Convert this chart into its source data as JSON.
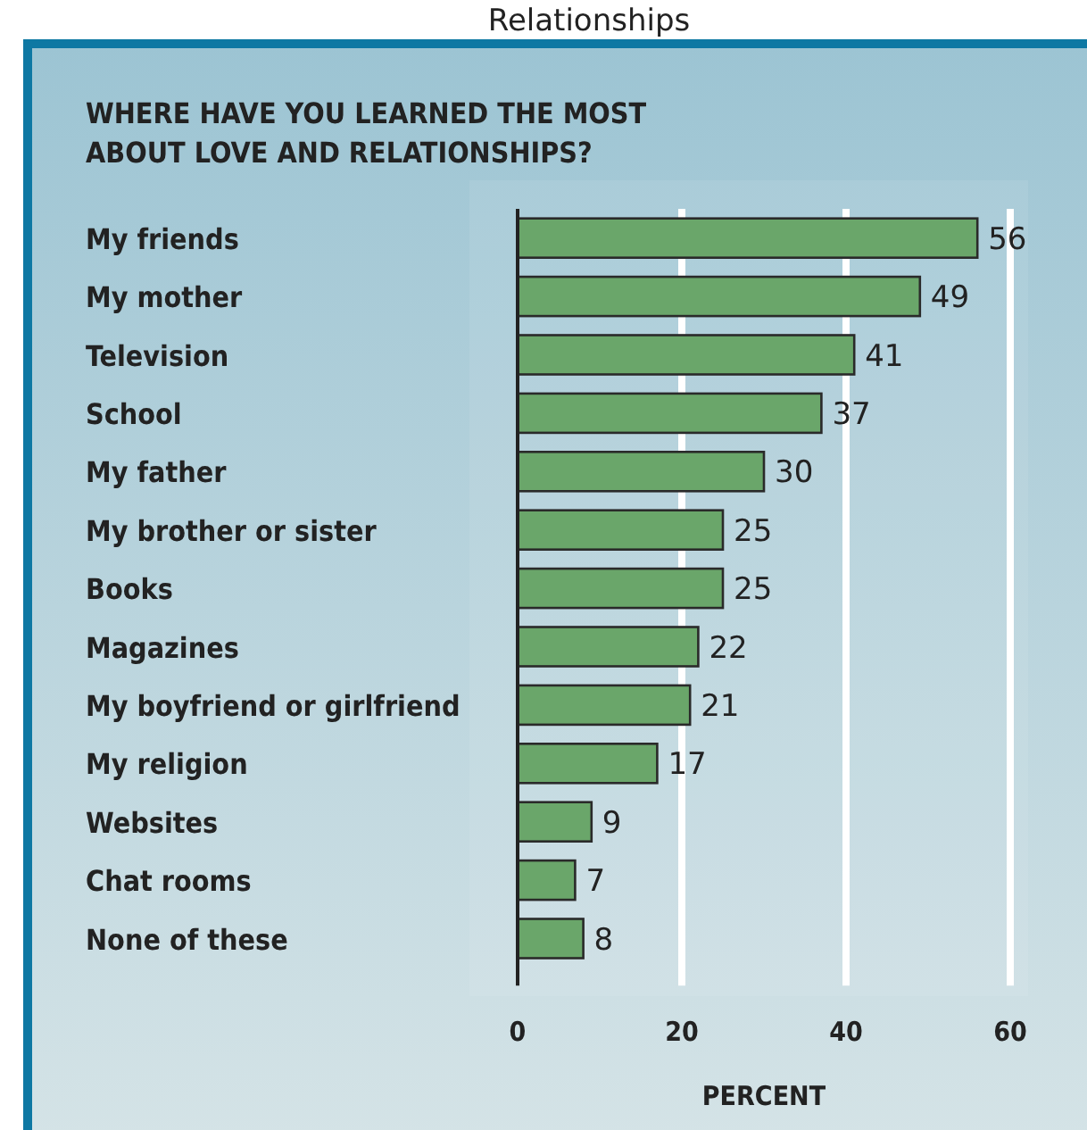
{
  "chart_data": {
    "type": "bar",
    "orientation": "horizontal",
    "title": "Relationships",
    "subtitle": "WHERE HAVE YOU LEARNED THE MOST\nABOUT LOVE AND RELATIONSHIPS?",
    "xlabel": "PERCENT",
    "categories": [
      "My friends",
      "My mother",
      "Television",
      "School",
      "My father",
      "My brother or sister",
      "Books",
      "Magazines",
      "My boyfriend or girlfriend",
      "My religion",
      "Websites",
      "Chat rooms",
      "None of these"
    ],
    "values": [
      56,
      49,
      41,
      37,
      30,
      25,
      25,
      22,
      21,
      17,
      9,
      7,
      8
    ],
    "color": "#6aa66a",
    "xlim": [
      0,
      60
    ],
    "xticks": [
      0,
      20,
      40,
      60
    ],
    "grid": "x",
    "data_labels": true
  }
}
